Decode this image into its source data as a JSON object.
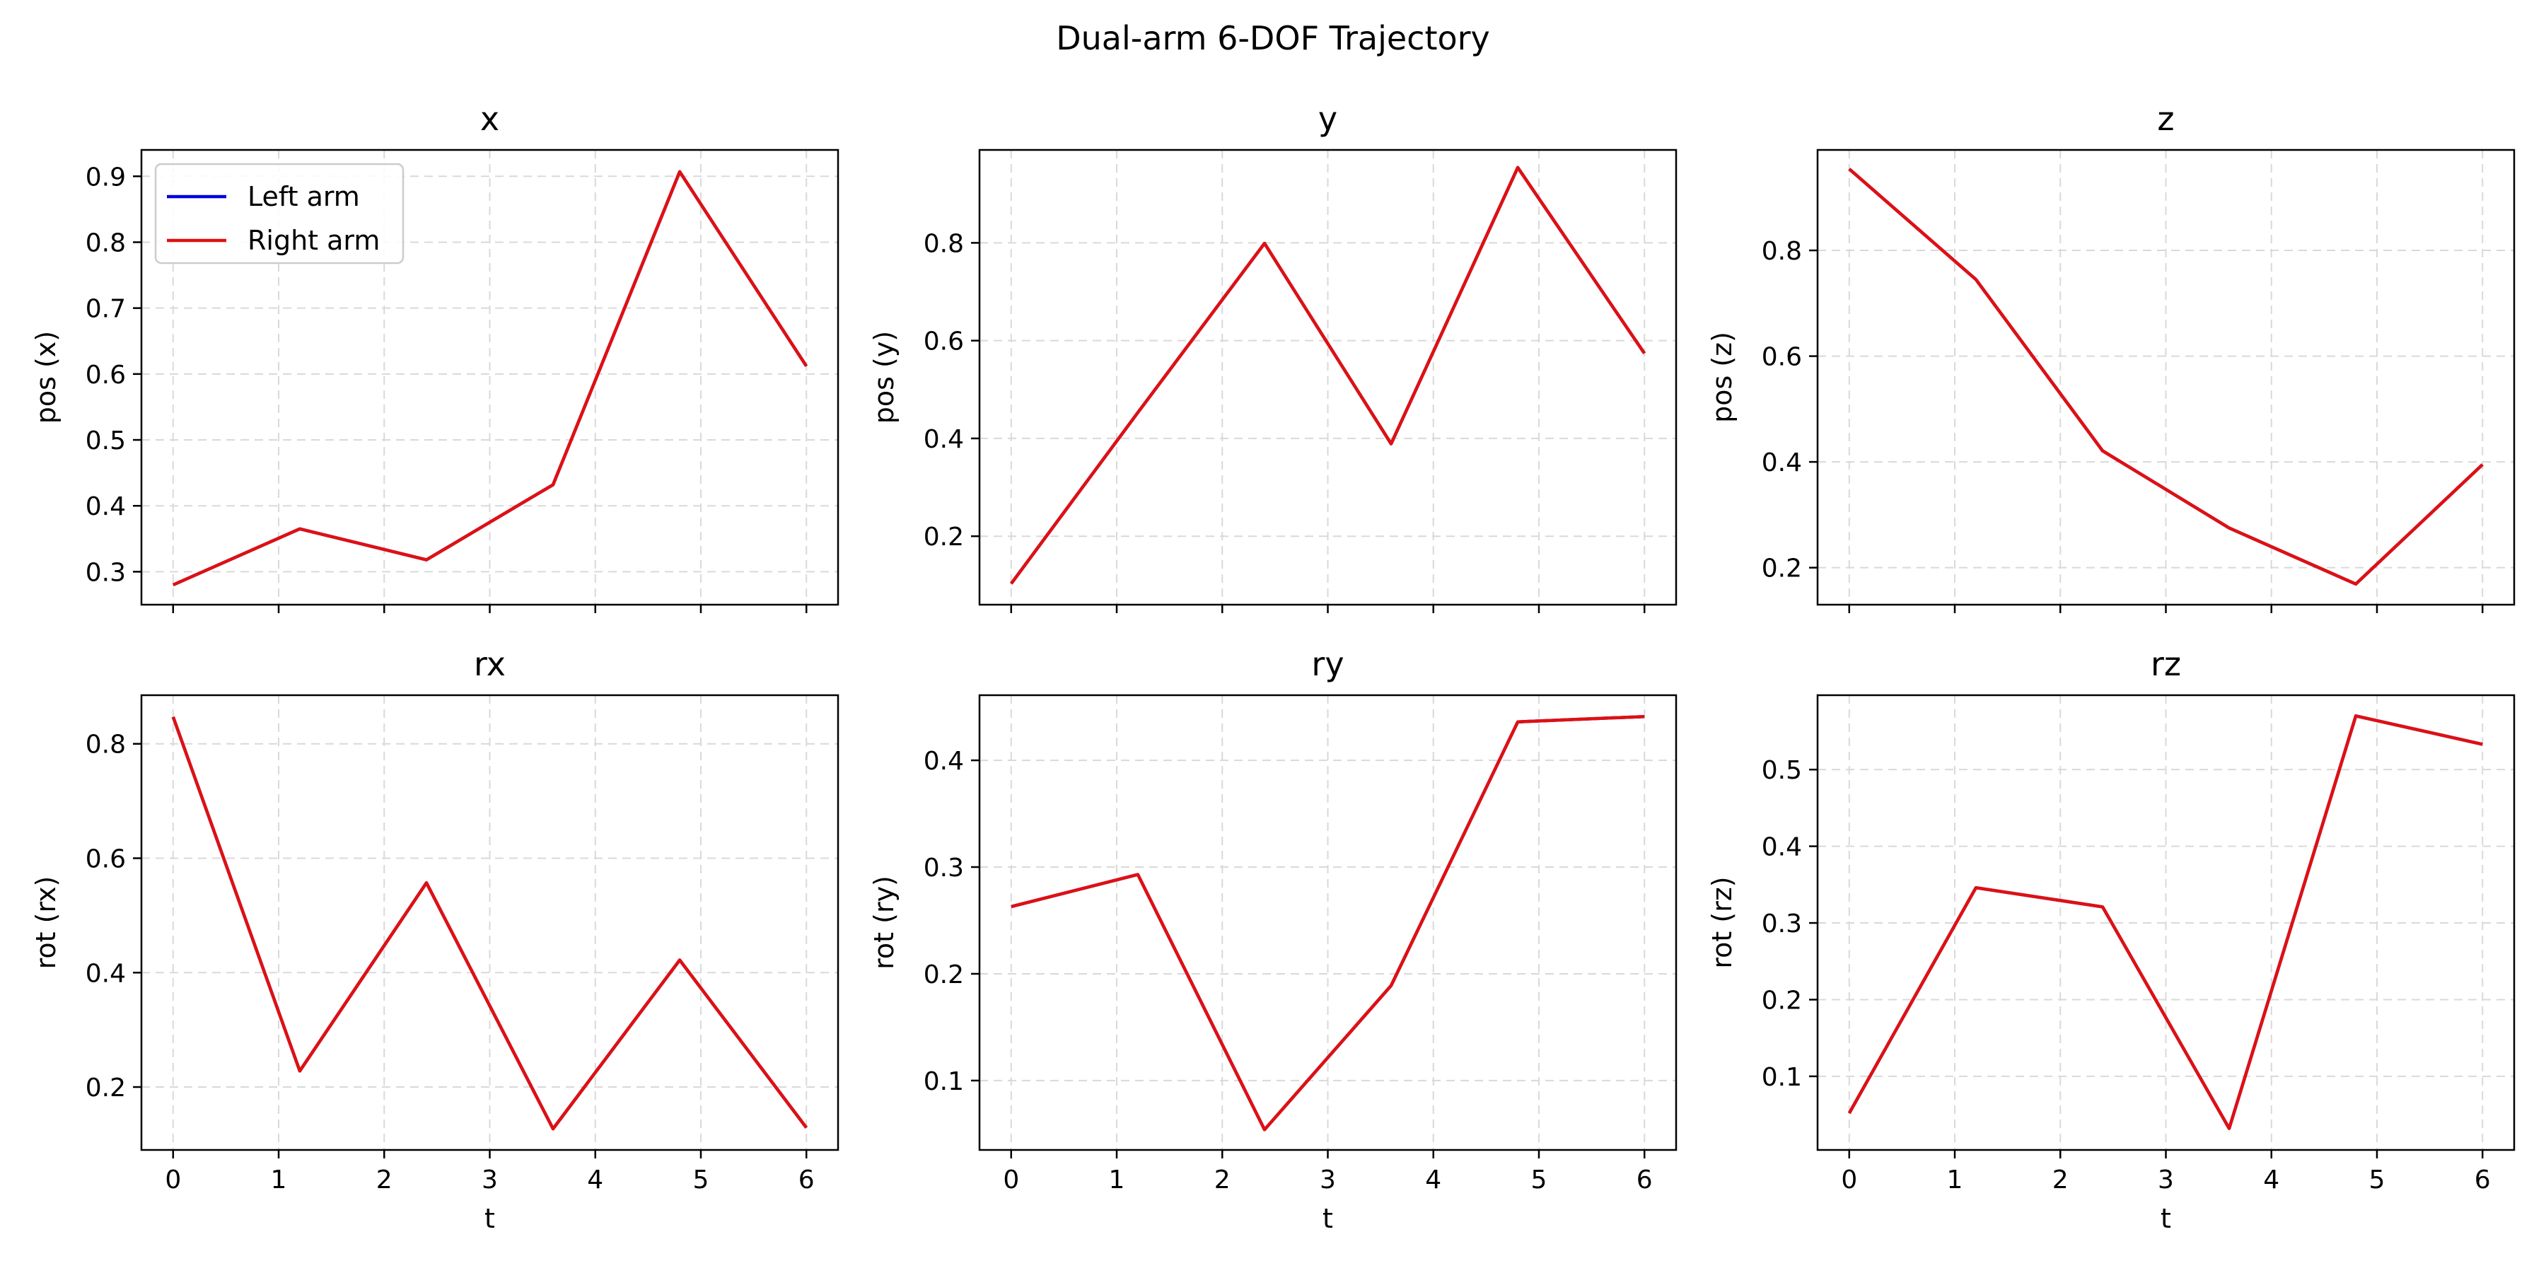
{
  "figure": {
    "title": "Dual-arm 6-DOF Trajectory",
    "colors": {
      "left_arm": "#0000dd",
      "right_arm": "#e01010",
      "grid": "#d9d9d9",
      "axes": "#000000",
      "legend_border": "#cccccc"
    }
  },
  "chart_data": [
    {
      "type": "line",
      "title": "x",
      "xlabel": "",
      "ylabel": "pos (x)",
      "x": [
        0,
        1.2,
        2.4,
        3.6,
        4.8,
        6.0
      ],
      "xlim": [
        -0.3,
        6.3
      ],
      "ylim": [
        0.25,
        0.94
      ],
      "xticks": [
        0,
        1,
        2,
        3,
        4,
        5,
        6
      ],
      "yticks": [
        0.3,
        0.4,
        0.5,
        0.6,
        0.7,
        0.8,
        0.9
      ],
      "ytick_labels": [
        "0.3",
        "0.4",
        "0.5",
        "0.6",
        "0.7",
        "0.8",
        "0.9"
      ],
      "show_xtick_labels": false,
      "grid": true,
      "legend": {
        "location": "upper-left",
        "entries": [
          "Left arm",
          "Right arm"
        ]
      },
      "series": [
        {
          "name": "Left arm",
          "values": [
            0.28,
            0.365,
            0.318,
            0.432,
            0.907,
            0.612
          ]
        },
        {
          "name": "Right arm",
          "values": [
            0.28,
            0.365,
            0.318,
            0.432,
            0.907,
            0.612
          ]
        }
      ]
    },
    {
      "type": "line",
      "title": "y",
      "xlabel": "",
      "ylabel": "pos (y)",
      "x": [
        0,
        1.2,
        2.4,
        3.6,
        4.8,
        6.0
      ],
      "xlim": [
        -0.3,
        6.3
      ],
      "ylim": [
        0.06,
        0.99
      ],
      "xticks": [
        0,
        1,
        2,
        3,
        4,
        5,
        6
      ],
      "yticks": [
        0.2,
        0.4,
        0.6,
        0.8
      ],
      "ytick_labels": [
        "0.2",
        "0.4",
        "0.6",
        "0.8"
      ],
      "show_xtick_labels": false,
      "grid": true,
      "series": [
        {
          "name": "Left arm",
          "values": [
            0.103,
            0.453,
            0.799,
            0.389,
            0.954,
            0.574
          ]
        },
        {
          "name": "Right arm",
          "values": [
            0.103,
            0.453,
            0.799,
            0.389,
            0.954,
            0.574
          ]
        }
      ]
    },
    {
      "type": "line",
      "title": "z",
      "xlabel": "",
      "ylabel": "pos (z)",
      "x": [
        0,
        1.2,
        2.4,
        3.6,
        4.8,
        6.0
      ],
      "xlim": [
        -0.3,
        6.3
      ],
      "ylim": [
        0.13,
        0.99
      ],
      "xticks": [
        0,
        1,
        2,
        3,
        4,
        5,
        6
      ],
      "yticks": [
        0.2,
        0.4,
        0.6,
        0.8
      ],
      "ytick_labels": [
        "0.2",
        "0.4",
        "0.6",
        "0.8"
      ],
      "show_xtick_labels": false,
      "grid": true,
      "series": [
        {
          "name": "Left arm",
          "values": [
            0.954,
            0.745,
            0.421,
            0.275,
            0.169,
            0.395
          ]
        },
        {
          "name": "Right arm",
          "values": [
            0.954,
            0.745,
            0.421,
            0.275,
            0.169,
            0.395
          ]
        }
      ]
    },
    {
      "type": "line",
      "title": "rx",
      "xlabel": "t",
      "ylabel": "rot (rx)",
      "x": [
        0,
        1.2,
        2.4,
        3.6,
        4.8,
        6.0
      ],
      "xlim": [
        -0.3,
        6.3
      ],
      "ylim": [
        0.09,
        0.885
      ],
      "xticks": [
        0,
        1,
        2,
        3,
        4,
        5,
        6
      ],
      "xtick_labels": [
        "0",
        "1",
        "2",
        "3",
        "4",
        "5",
        "6"
      ],
      "yticks": [
        0.2,
        0.4,
        0.6,
        0.8
      ],
      "ytick_labels": [
        "0.2",
        "0.4",
        "0.6",
        "0.8"
      ],
      "show_xtick_labels": true,
      "grid": true,
      "series": [
        {
          "name": "Left arm",
          "values": [
            0.847,
            0.228,
            0.557,
            0.127,
            0.422,
            0.129
          ]
        },
        {
          "name": "Right arm",
          "values": [
            0.847,
            0.228,
            0.557,
            0.127,
            0.422,
            0.129
          ]
        }
      ]
    },
    {
      "type": "line",
      "title": "ry",
      "xlabel": "t",
      "ylabel": "rot (ry)",
      "x": [
        0,
        1.2,
        2.4,
        3.6,
        4.8,
        6.0
      ],
      "xlim": [
        -0.3,
        6.3
      ],
      "ylim": [
        0.035,
        0.461
      ],
      "xticks": [
        0,
        1,
        2,
        3,
        4,
        5,
        6
      ],
      "xtick_labels": [
        "0",
        "1",
        "2",
        "3",
        "4",
        "5",
        "6"
      ],
      "yticks": [
        0.1,
        0.2,
        0.3,
        0.4
      ],
      "ytick_labels": [
        "0.1",
        "0.2",
        "0.3",
        "0.4"
      ],
      "show_xtick_labels": true,
      "grid": true,
      "series": [
        {
          "name": "Left arm",
          "values": [
            0.263,
            0.293,
            0.054,
            0.189,
            0.436,
            0.441
          ]
        },
        {
          "name": "Right arm",
          "values": [
            0.263,
            0.293,
            0.054,
            0.189,
            0.436,
            0.441
          ]
        }
      ]
    },
    {
      "type": "line",
      "title": "rz",
      "xlabel": "t",
      "ylabel": "rot (rz)",
      "x": [
        0,
        1.2,
        2.4,
        3.6,
        4.8,
        6.0
      ],
      "xlim": [
        -0.3,
        6.3
      ],
      "ylim": [
        0.004,
        0.597
      ],
      "xticks": [
        0,
        1,
        2,
        3,
        4,
        5,
        6
      ],
      "xtick_labels": [
        "0",
        "1",
        "2",
        "3",
        "4",
        "5",
        "6"
      ],
      "yticks": [
        0.1,
        0.2,
        0.3,
        0.4,
        0.5
      ],
      "ytick_labels": [
        "0.1",
        "0.2",
        "0.3",
        "0.4",
        "0.5"
      ],
      "show_xtick_labels": true,
      "grid": true,
      "series": [
        {
          "name": "Left arm",
          "values": [
            0.052,
            0.346,
            0.321,
            0.032,
            0.57,
            0.533
          ]
        },
        {
          "name": "Right arm",
          "values": [
            0.052,
            0.346,
            0.321,
            0.032,
            0.57,
            0.533
          ]
        }
      ]
    }
  ]
}
